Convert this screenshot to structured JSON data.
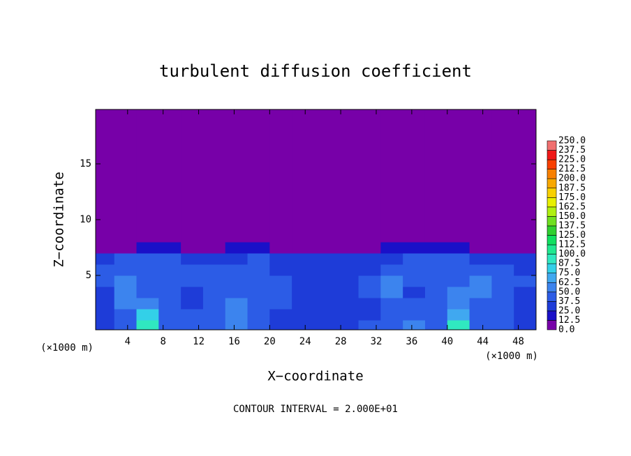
{
  "chart_data": {
    "type": "heatmap",
    "title": "turbulent diffusion coefficient",
    "xlabel": "X−coordinate",
    "ylabel": "Z−coordinate",
    "xunit": "(×1000 m)",
    "yunit": "(×1000 m)",
    "footnote": "CONTOUR INTERVAL = 2.000E+01",
    "xlim": [
      0.4,
      50
    ],
    "ylim": [
      0.125,
      19.875
    ],
    "xticks": [
      4,
      8,
      12,
      16,
      20,
      24,
      28,
      32,
      36,
      40,
      44,
      48
    ],
    "yticks": [
      5,
      10,
      15
    ],
    "xbins": [
      0.4,
      2.5,
      5,
      7.5,
      10,
      12.5,
      15,
      17.5,
      20,
      22.5,
      25,
      27.5,
      30,
      32.5,
      35,
      37.5,
      40,
      42.5,
      45,
      47.5,
      50
    ],
    "zbins": [
      0.125,
      1,
      2,
      3,
      4,
      5,
      6,
      7,
      8,
      19.875
    ],
    "values": [
      [
        35,
        45,
        90,
        45,
        40,
        40,
        60,
        40,
        35,
        30,
        35,
        35,
        40,
        45,
        50,
        45,
        90,
        45,
        40,
        35
      ],
      [
        30,
        45,
        75,
        45,
        40,
        45,
        55,
        40,
        35,
        35,
        30,
        30,
        35,
        40,
        45,
        45,
        70,
        45,
        40,
        30
      ],
      [
        30,
        50,
        55,
        40,
        35,
        45,
        50,
        45,
        40,
        35,
        30,
        30,
        35,
        45,
        40,
        45,
        55,
        45,
        40,
        30
      ],
      [
        35,
        50,
        45,
        40,
        35,
        40,
        45,
        40,
        40,
        35,
        30,
        35,
        40,
        50,
        35,
        40,
        50,
        50,
        45,
        35
      ],
      [
        40,
        50,
        40,
        45,
        40,
        45,
        45,
        40,
        40,
        35,
        35,
        35,
        40,
        55,
        45,
        40,
        45,
        50,
        45,
        40
      ],
      [
        40,
        45,
        45,
        45,
        40,
        40,
        40,
        40,
        35,
        30,
        30,
        30,
        35,
        45,
        45,
        45,
        45,
        40,
        40,
        35
      ],
      [
        35,
        40,
        40,
        40,
        35,
        30,
        35,
        40,
        35,
        30,
        25,
        25,
        30,
        35,
        40,
        40,
        40,
        35,
        35,
        30
      ],
      [
        0,
        10,
        20,
        15,
        5,
        10,
        20,
        20,
        10,
        5,
        5,
        5,
        10,
        15,
        20,
        20,
        15,
        10,
        5,
        0
      ],
      [
        0,
        0,
        0,
        0,
        0,
        0,
        0,
        0,
        0,
        0,
        0,
        0,
        0,
        0,
        0,
        0,
        0,
        0,
        0,
        0
      ]
    ],
    "levels": [
      {
        "value": 0,
        "label": "0.0"
      },
      {
        "value": 12.5,
        "label": "12.5"
      },
      {
        "value": 25,
        "label": "25.0"
      },
      {
        "value": 37.5,
        "label": "37.5"
      },
      {
        "value": 50,
        "label": "50.0"
      },
      {
        "value": 62.5,
        "label": "62.5"
      },
      {
        "value": 75,
        "label": "75.0"
      },
      {
        "value": 87.5,
        "label": "87.5"
      },
      {
        "value": 100,
        "label": "100.0"
      },
      {
        "value": 112.5,
        "label": "112.5"
      },
      {
        "value": 125,
        "label": "125.0"
      },
      {
        "value": 137.5,
        "label": "137.5"
      },
      {
        "value": 150,
        "label": "150.0"
      },
      {
        "value": 162.5,
        "label": "162.5"
      },
      {
        "value": 175,
        "label": "175.0"
      },
      {
        "value": 187.5,
        "label": "187.5"
      },
      {
        "value": 200,
        "label": "200.0"
      },
      {
        "value": 212.5,
        "label": "212.5"
      },
      {
        "value": 225,
        "label": "225.0"
      },
      {
        "value": 237.5,
        "label": "237.5"
      },
      {
        "value": 250,
        "label": "250.0"
      }
    ],
    "colors": [
      "#7700a8",
      "#1a10c8",
      "#1e3cd8",
      "#2c5ce6",
      "#3c84ee",
      "#40a8f0",
      "#33d0e8",
      "#30e8c0",
      "#20e890",
      "#10e060",
      "#30d030",
      "#70e020",
      "#b0f010",
      "#e8f000",
      "#f8d000",
      "#f8a800",
      "#f88000",
      "#f84000",
      "#f01818",
      "#f07070"
    ]
  }
}
